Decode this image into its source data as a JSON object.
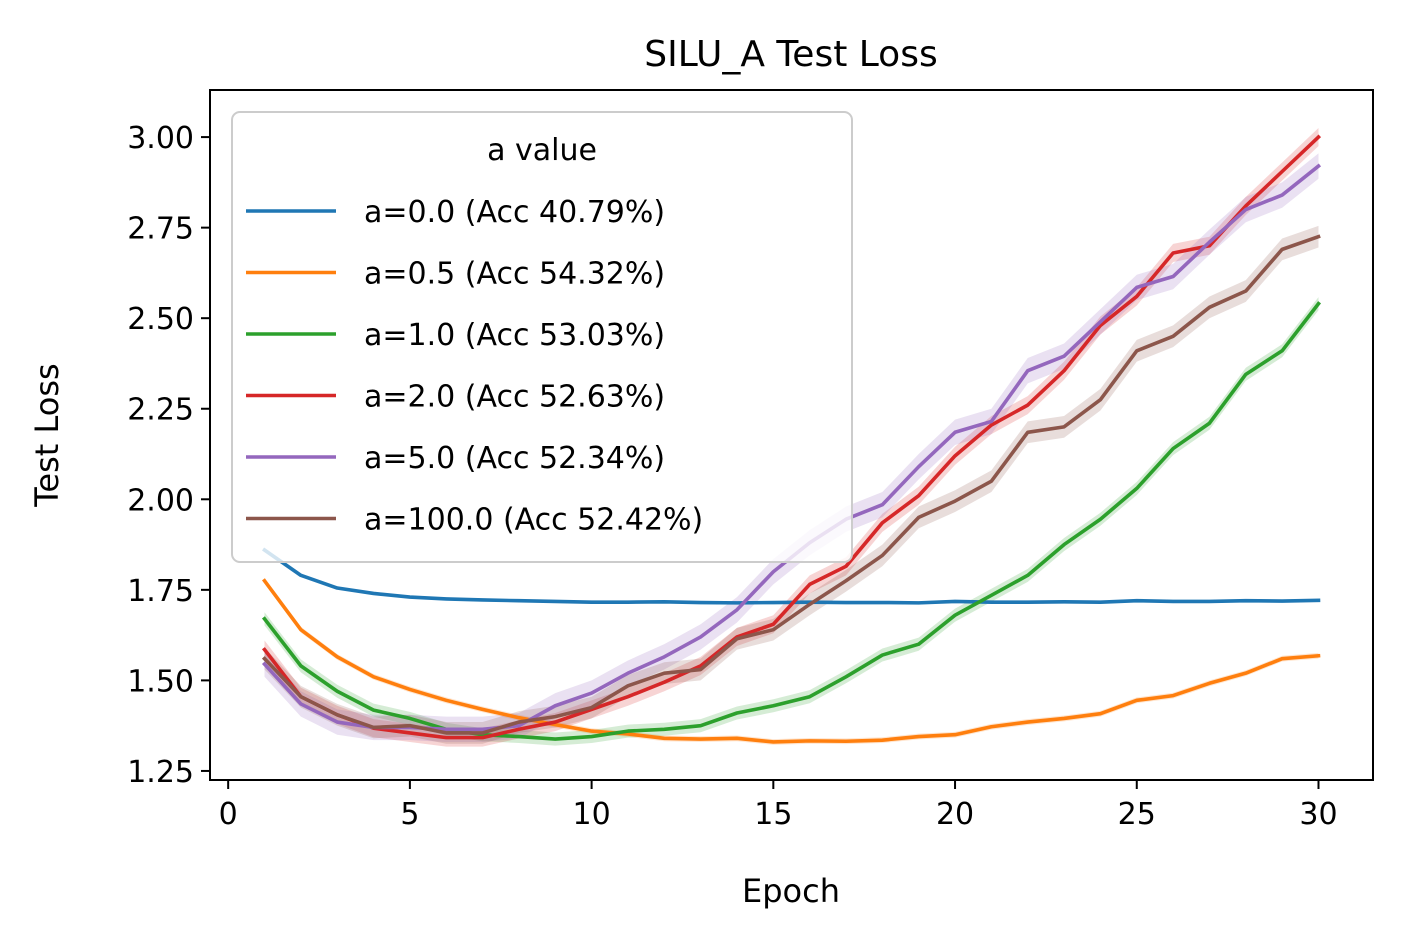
{
  "chart_data": {
    "type": "line",
    "title": "SILU_A Test Loss",
    "xlabel": "Epoch",
    "ylabel": "Test Loss",
    "xlim": [
      -0.5,
      31.5
    ],
    "ylim": [
      1.225,
      3.13
    ],
    "xticks": [
      0,
      5,
      10,
      15,
      20,
      25,
      30
    ],
    "yticks": [
      1.25,
      1.5,
      1.75,
      2.0,
      2.25,
      2.5,
      2.75,
      3.0
    ],
    "ytick_labels": [
      "1.25",
      "1.50",
      "1.75",
      "2.00",
      "2.25",
      "2.50",
      "2.75",
      "3.00"
    ],
    "grid": false,
    "legend": {
      "title": "a value",
      "position": "upper-left"
    },
    "x": [
      1,
      2,
      3,
      4,
      5,
      6,
      7,
      8,
      9,
      10,
      11,
      12,
      13,
      14,
      15,
      16,
      17,
      18,
      19,
      20,
      21,
      22,
      23,
      24,
      25,
      26,
      27,
      28,
      29,
      30
    ],
    "series": [
      {
        "name": "a=0.0 (Acc 40.79%)",
        "color": "#1f77b4",
        "values": [
          1.86,
          1.79,
          1.755,
          1.74,
          1.73,
          1.725,
          1.722,
          1.72,
          1.718,
          1.716,
          1.716,
          1.717,
          1.715,
          1.714,
          1.715,
          1.716,
          1.715,
          1.715,
          1.714,
          1.718,
          1.716,
          1.716,
          1.717,
          1.716,
          1.72,
          1.718,
          1.718,
          1.72,
          1.719,
          1.721
        ],
        "band": 0.004
      },
      {
        "name": "a=0.5 (Acc 54.32%)",
        "color": "#ff7f0e",
        "values": [
          1.775,
          1.64,
          1.565,
          1.51,
          1.475,
          1.445,
          1.42,
          1.397,
          1.378,
          1.36,
          1.352,
          1.34,
          1.338,
          1.34,
          1.33,
          1.333,
          1.332,
          1.335,
          1.345,
          1.35,
          1.372,
          1.385,
          1.395,
          1.408,
          1.445,
          1.458,
          1.492,
          1.52,
          1.56,
          1.568
        ],
        "band": 0.008
      },
      {
        "name": "a=1.0 (Acc 53.03%)",
        "color": "#2ca02c",
        "values": [
          1.67,
          1.54,
          1.47,
          1.418,
          1.395,
          1.365,
          1.35,
          1.345,
          1.338,
          1.345,
          1.36,
          1.365,
          1.375,
          1.41,
          1.43,
          1.455,
          1.51,
          1.57,
          1.6,
          1.68,
          1.735,
          1.79,
          1.875,
          1.945,
          2.03,
          2.14,
          2.21,
          2.345,
          2.41,
          2.54
        ],
        "band": 0.018
      },
      {
        "name": "a=2.0 (Acc 52.63%)",
        "color": "#d62728",
        "values": [
          1.585,
          1.455,
          1.405,
          1.368,
          1.355,
          1.342,
          1.342,
          1.365,
          1.385,
          1.42,
          1.455,
          1.495,
          1.54,
          1.62,
          1.655,
          1.765,
          1.815,
          1.935,
          2.01,
          2.12,
          2.205,
          2.26,
          2.355,
          2.48,
          2.56,
          2.68,
          2.7,
          2.81,
          2.905,
          3.0
        ],
        "band": 0.025
      },
      {
        "name": "a=5.0 (Acc 52.34%)",
        "color": "#9467bd",
        "values": [
          1.545,
          1.435,
          1.385,
          1.37,
          1.37,
          1.365,
          1.365,
          1.375,
          1.43,
          1.465,
          1.52,
          1.565,
          1.62,
          1.695,
          1.8,
          1.88,
          1.945,
          1.985,
          2.09,
          2.185,
          2.215,
          2.355,
          2.395,
          2.49,
          2.585,
          2.615,
          2.71,
          2.8,
          2.84,
          2.92
        ],
        "band": 0.035
      },
      {
        "name": "a=100.0 (Acc 52.42%)",
        "color": "#8c564b",
        "values": [
          1.56,
          1.455,
          1.405,
          1.37,
          1.375,
          1.355,
          1.355,
          1.385,
          1.4,
          1.425,
          1.485,
          1.52,
          1.53,
          1.615,
          1.64,
          1.71,
          1.775,
          1.845,
          1.95,
          1.995,
          2.05,
          2.185,
          2.2,
          2.275,
          2.41,
          2.45,
          2.53,
          2.575,
          2.69,
          2.725
        ],
        "band": 0.03
      }
    ]
  }
}
